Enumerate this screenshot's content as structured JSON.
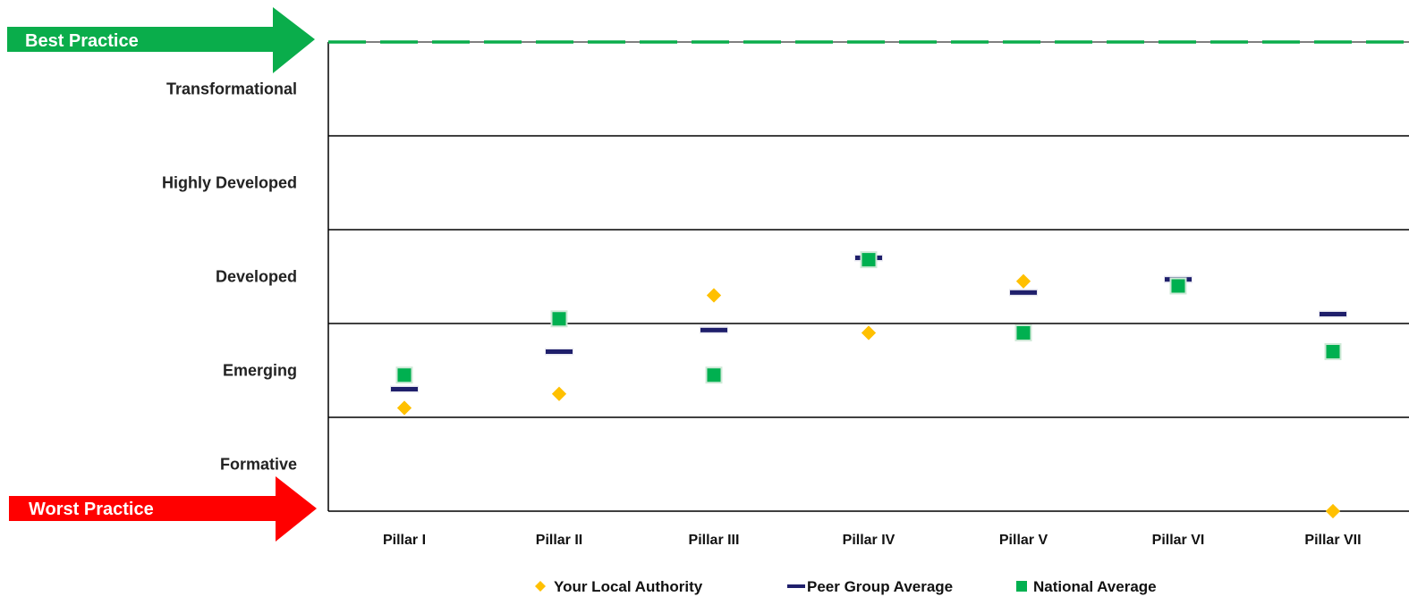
{
  "best_practice_label": "Best Practice",
  "worst_practice_label": "Worst Practice",
  "colors": {
    "best": "#0aad4b",
    "worst": "#ff0000",
    "local": "#ffc000",
    "peer": "#1f1f6b",
    "national": "#00b050"
  },
  "chart_data": {
    "type": "scatter",
    "title": "",
    "xlabel": "",
    "ylabel": "",
    "ylim": [
      0,
      5
    ],
    "y_bands": [
      "Formative",
      "Emerging",
      "Developed",
      "Highly Developed",
      "Transformational"
    ],
    "categories": [
      "Pillar I",
      "Pillar II",
      "Pillar III",
      "Pillar IV",
      "Pillar V",
      "Pillar VI",
      "Pillar VII"
    ],
    "series": [
      {
        "name": "Your Local Authority",
        "marker": "diamond",
        "values": [
          1.1,
          1.25,
          2.3,
          1.9,
          2.45,
          null,
          0.0
        ]
      },
      {
        "name": "Peer Group Average",
        "marker": "dash",
        "values": [
          1.3,
          1.7,
          1.93,
          2.7,
          2.33,
          2.47,
          2.1
        ]
      },
      {
        "name": "National Average",
        "marker": "square",
        "values": [
          1.45,
          2.05,
          1.45,
          2.68,
          1.9,
          2.4,
          1.7
        ]
      }
    ],
    "best_practice_line": 5,
    "grid": true,
    "legend_position": "bottom"
  }
}
